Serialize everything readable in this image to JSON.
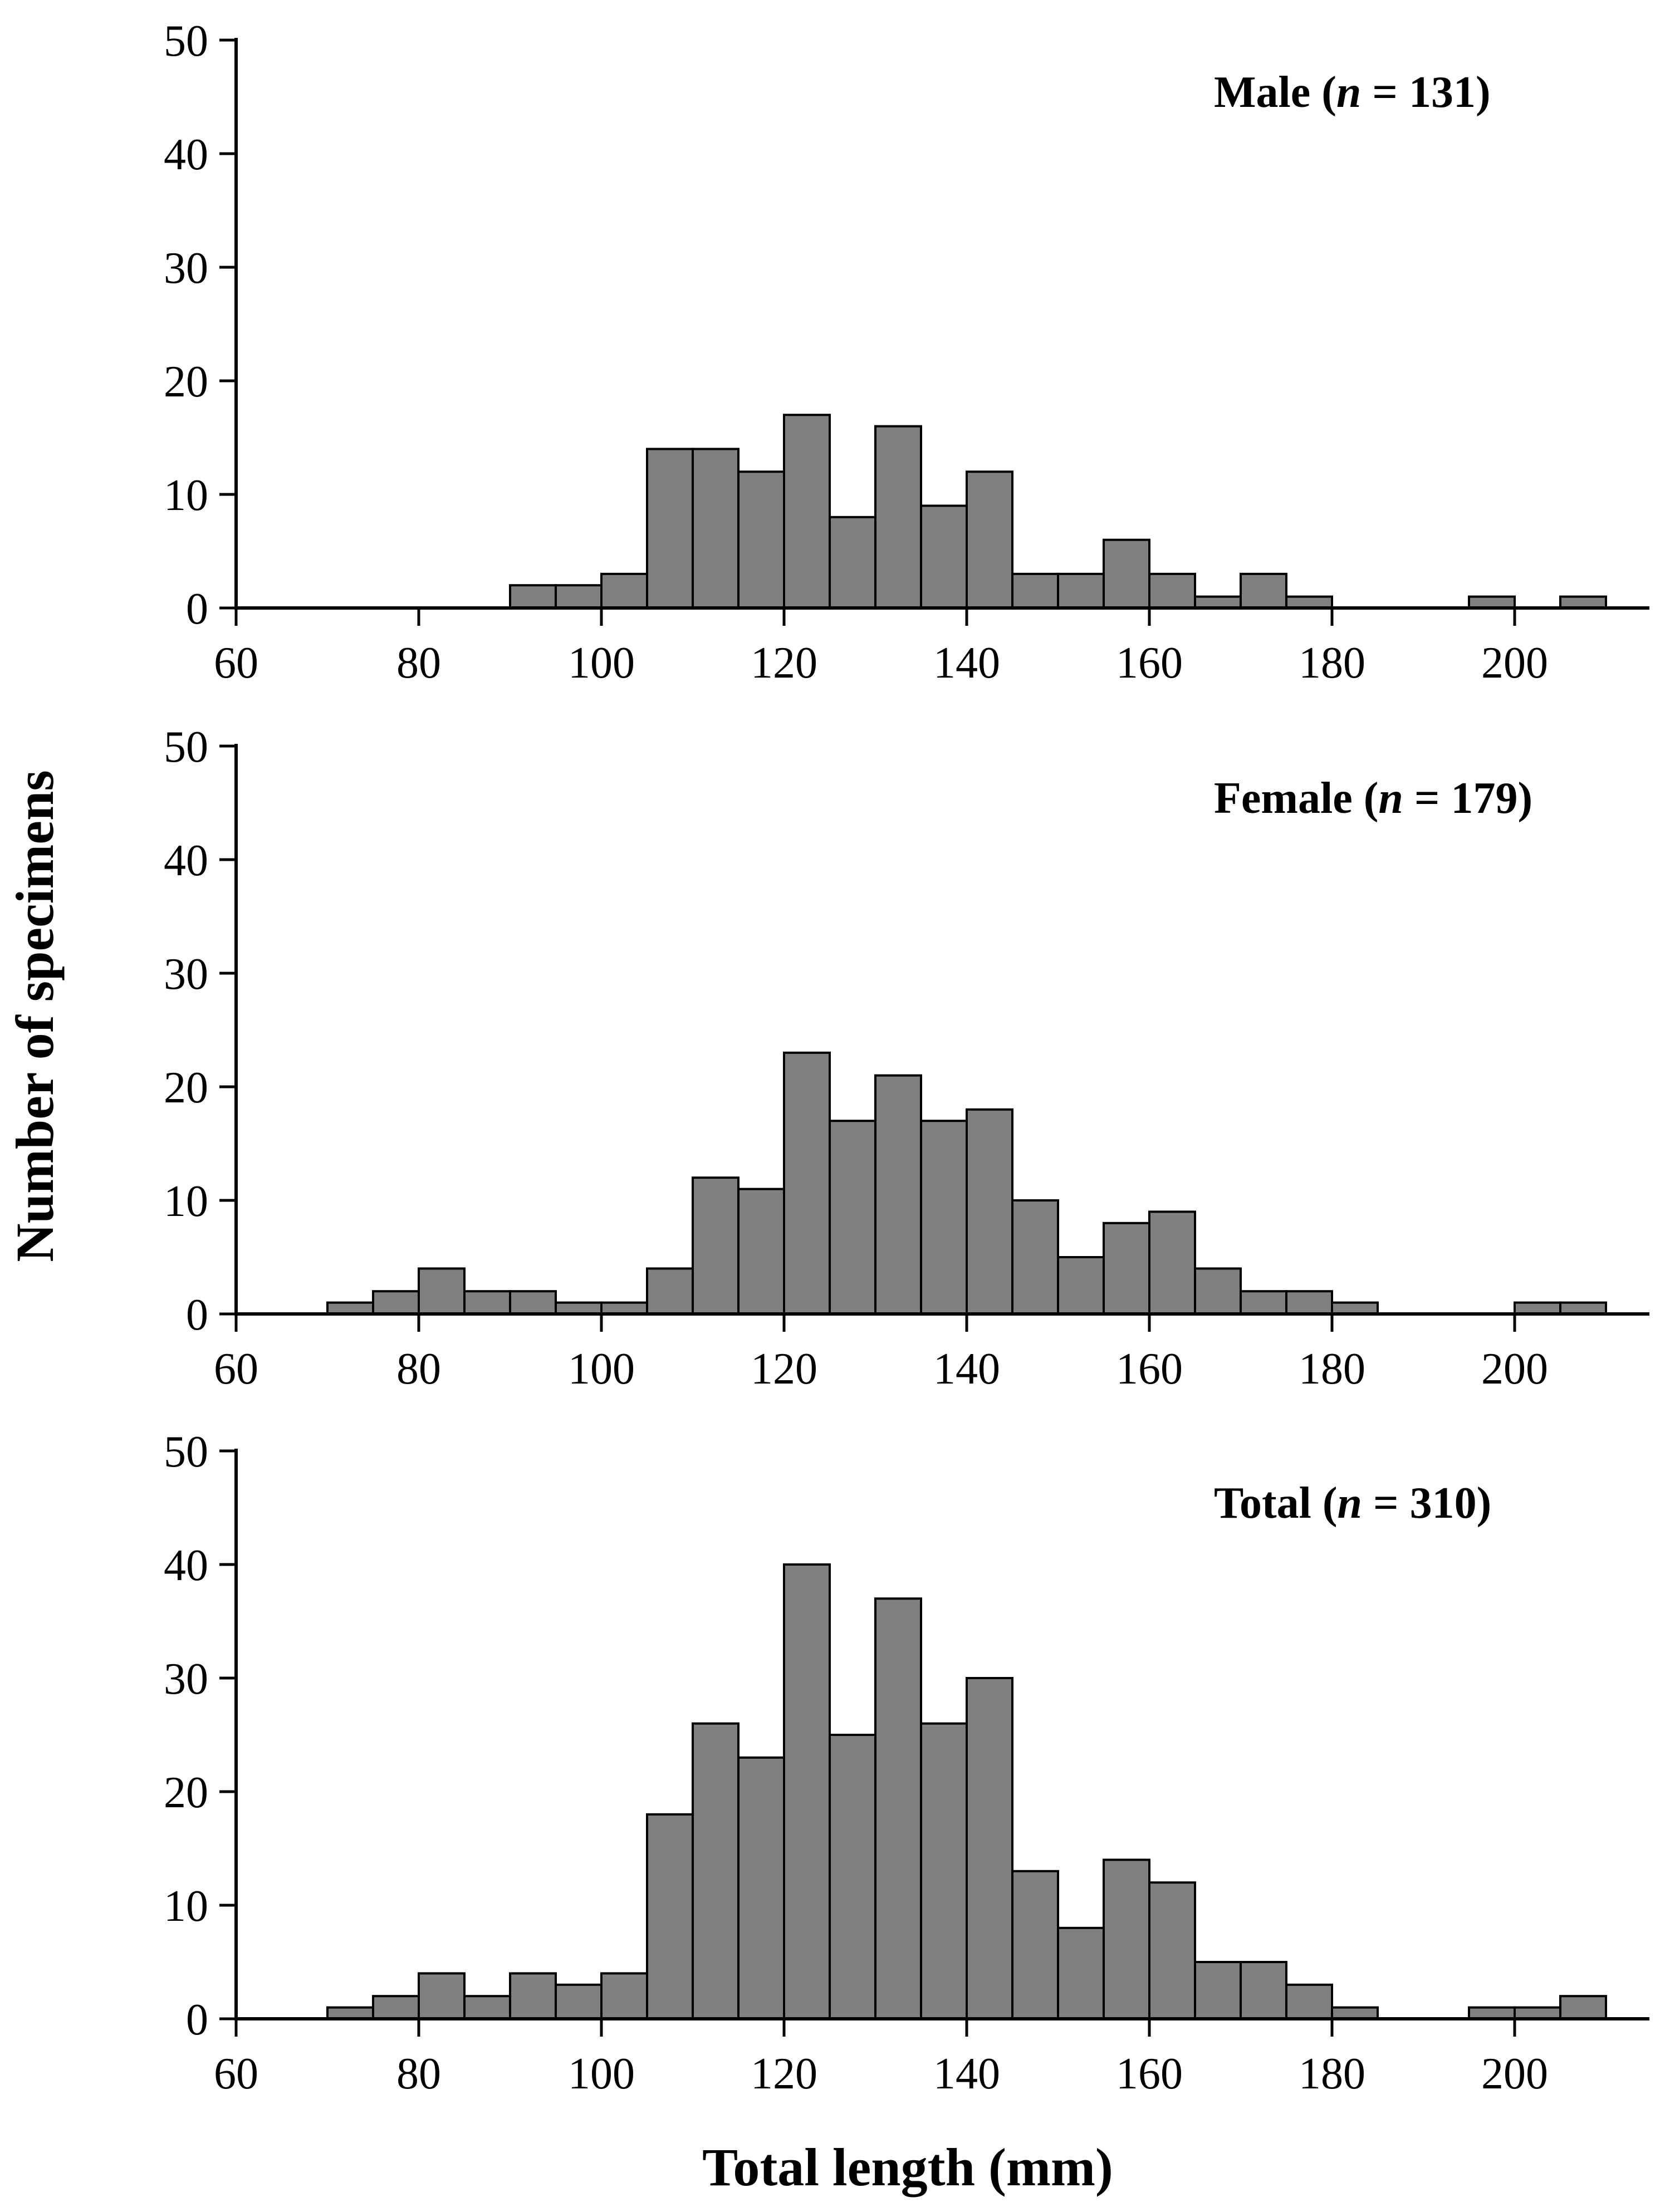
{
  "chart_data": [
    {
      "type": "bar",
      "panel": "male",
      "title_prefix": "Male (",
      "title_n_symbol": "n",
      "title_suffix": " = 131)",
      "bin_starts": [
        90,
        95,
        100,
        105,
        110,
        115,
        120,
        125,
        130,
        135,
        140,
        145,
        150,
        155,
        160,
        165,
        170,
        175,
        180,
        185,
        190,
        195,
        200,
        205
      ],
      "bin_width": 5,
      "values": [
        2,
        2,
        3,
        14,
        14,
        12,
        17,
        8,
        16,
        9,
        12,
        3,
        3,
        6,
        3,
        1,
        3,
        1,
        0,
        0,
        0,
        1,
        0,
        1
      ],
      "xlim": [
        60,
        215
      ],
      "ylim": [
        0,
        50
      ],
      "xticks": [
        "60",
        "80",
        "100",
        "120",
        "140",
        "160",
        "180",
        "200"
      ],
      "yticks": [
        "0",
        "10",
        "20",
        "30",
        "40",
        "50"
      ]
    },
    {
      "type": "bar",
      "panel": "female",
      "title_prefix": "Female (",
      "title_n_symbol": "n",
      "title_suffix": " = 179)",
      "bin_starts": [
        70,
        75,
        80,
        85,
        90,
        95,
        100,
        105,
        110,
        115,
        120,
        125,
        130,
        135,
        140,
        145,
        150,
        155,
        160,
        165,
        170,
        175,
        180,
        185,
        190,
        195,
        200,
        205
      ],
      "bin_width": 5,
      "values": [
        1,
        2,
        4,
        2,
        2,
        1,
        1,
        4,
        12,
        11,
        23,
        17,
        21,
        17,
        18,
        10,
        5,
        8,
        9,
        4,
        2,
        2,
        1,
        0,
        0,
        0,
        1,
        1
      ],
      "xlim": [
        60,
        215
      ],
      "ylim": [
        0,
        50
      ],
      "xticks": [
        "60",
        "80",
        "100",
        "120",
        "140",
        "160",
        "180",
        "200"
      ],
      "yticks": [
        "0",
        "10",
        "20",
        "30",
        "40",
        "50"
      ]
    },
    {
      "type": "bar",
      "panel": "total",
      "title_prefix": "Total (",
      "title_n_symbol": "n",
      "title_suffix": " = 310)",
      "bin_starts": [
        70,
        75,
        80,
        85,
        90,
        95,
        100,
        105,
        110,
        115,
        120,
        125,
        130,
        135,
        140,
        145,
        150,
        155,
        160,
        165,
        170,
        175,
        180,
        185,
        190,
        195,
        200,
        205
      ],
      "bin_width": 5,
      "values": [
        1,
        2,
        4,
        2,
        4,
        3,
        4,
        18,
        26,
        23,
        40,
        25,
        37,
        26,
        30,
        13,
        8,
        14,
        12,
        5,
        5,
        3,
        1,
        0,
        0,
        1,
        1,
        2
      ],
      "xlim": [
        60,
        215
      ],
      "ylim": [
        0,
        50
      ],
      "xticks": [
        "60",
        "80",
        "100",
        "120",
        "140",
        "160",
        "180",
        "200"
      ],
      "yticks": [
        "0",
        "10",
        "20",
        "30",
        "40",
        "50"
      ]
    }
  ],
  "xlabel": "Total length (mm)",
  "ylabel": "Number of specimens",
  "colors": {
    "bar_fill": "#808080",
    "bar_stroke": "#000000",
    "axis": "#000000"
  }
}
